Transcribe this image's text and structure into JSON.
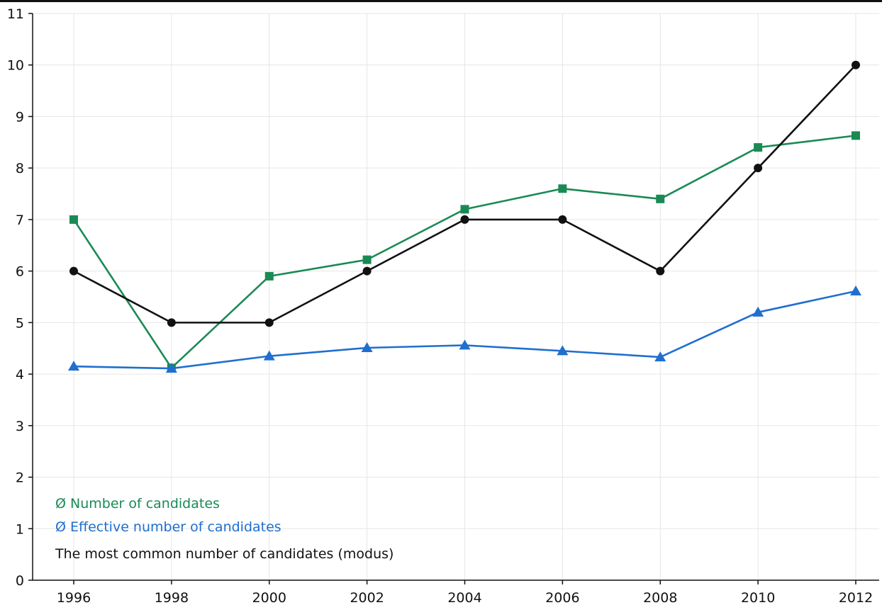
{
  "chart_data": {
    "type": "line",
    "title": "",
    "xlabel": "",
    "ylabel": "",
    "x": [
      "1996",
      "1998",
      "2000",
      "2002",
      "2004",
      "2006",
      "2008",
      "2010",
      "2012"
    ],
    "xlim": [
      1996,
      2012
    ],
    "ylim": [
      0,
      11
    ],
    "y_ticks": [
      0,
      1,
      2,
      3,
      4,
      5,
      6,
      7,
      8,
      9,
      10,
      11
    ],
    "grid": true,
    "legend_position": "bottom-left",
    "series": [
      {
        "name": "Ø Number of candidates",
        "color": "#1a8a55",
        "marker": "square",
        "values": [
          7.0,
          4.12,
          5.9,
          6.22,
          7.2,
          7.6,
          7.4,
          8.4,
          8.63
        ]
      },
      {
        "name": "Ø Effective number of candidates",
        "color": "#1f6fcf",
        "marker": "triangle",
        "values": [
          4.15,
          4.11,
          4.35,
          4.51,
          4.56,
          4.45,
          4.33,
          5.2,
          5.61
        ]
      },
      {
        "name": "The most common number of candidates (modus)",
        "color": "#111111",
        "marker": "circle",
        "values": [
          6,
          5,
          5,
          6,
          7,
          7,
          6,
          8,
          10
        ]
      }
    ]
  }
}
